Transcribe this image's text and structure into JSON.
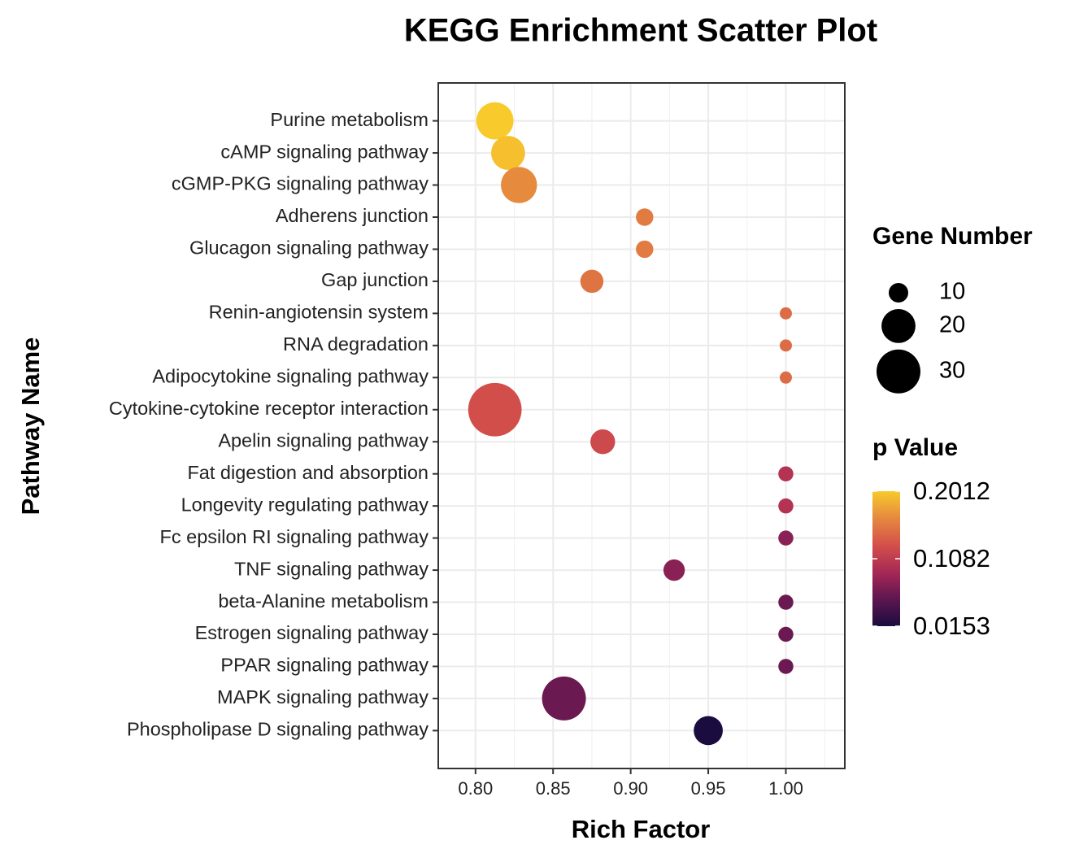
{
  "chart_data": {
    "type": "scatter",
    "title": "KEGG Enrichment Scatter Plot",
    "x_label": "Rich Factor",
    "y_label": "Pathway Name",
    "categories": [
      "Purine metabolism",
      "cAMP signaling pathway",
      "cGMP-PKG signaling pathway",
      "Adherens junction",
      "Glucagon signaling pathway",
      "Gap junction",
      "Renin-angiotensin system",
      "RNA degradation",
      "Adipocytokine signaling pathway",
      "Cytokine-cytokine receptor interaction",
      "Apelin signaling pathway",
      "Fat digestion and absorption",
      "Longevity regulating pathway",
      "Fc epsilon RI signaling pathway",
      "TNF signaling pathway",
      "beta-Alanine metabolism",
      "Estrogen signaling pathway",
      "PPAR signaling pathway",
      "MAPK signaling pathway",
      "Phospholipase D signaling pathway"
    ],
    "x": [
      0.8125,
      0.821,
      0.828,
      0.909,
      0.909,
      0.875,
      1.0,
      1.0,
      1.0,
      0.8125,
      0.882,
      1.0,
      1.0,
      1.0,
      0.928,
      1.0,
      1.0,
      1.0,
      0.857,
      0.95
    ],
    "sizes": [
      23,
      20,
      22,
      9,
      9,
      12,
      7,
      7,
      7,
      42,
      13,
      8,
      8,
      8,
      11,
      8,
      8,
      8,
      30,
      16
    ],
    "p_values": [
      0.2012,
      0.195,
      0.165,
      0.155,
      0.155,
      0.15,
      0.145,
      0.145,
      0.145,
      0.125,
      0.12,
      0.1,
      0.1,
      0.075,
      0.075,
      0.06,
      0.06,
      0.06,
      0.06,
      0.0153
    ],
    "xlim": [
      0.776,
      1.038
    ],
    "xticks": [
      {
        "value": 0.8,
        "label": "0.80"
      },
      0.85,
      {
        "value": 0.9,
        "label": "0.90"
      },
      0.95,
      {
        "value": 1.0,
        "label": "1.00"
      }
    ],
    "grid": true,
    "size_legend_title": "Gene Number",
    "size_legend": [
      10,
      20,
      30
    ],
    "color_legend_title": "p Value",
    "color_ticks": [
      0.2012,
      0.1082,
      0.0153
    ],
    "colormap": [
      "#1b0c3f",
      "#5c1650",
      "#a72856",
      "#d4504a",
      "#e5893f",
      "#f8ca2b"
    ]
  }
}
